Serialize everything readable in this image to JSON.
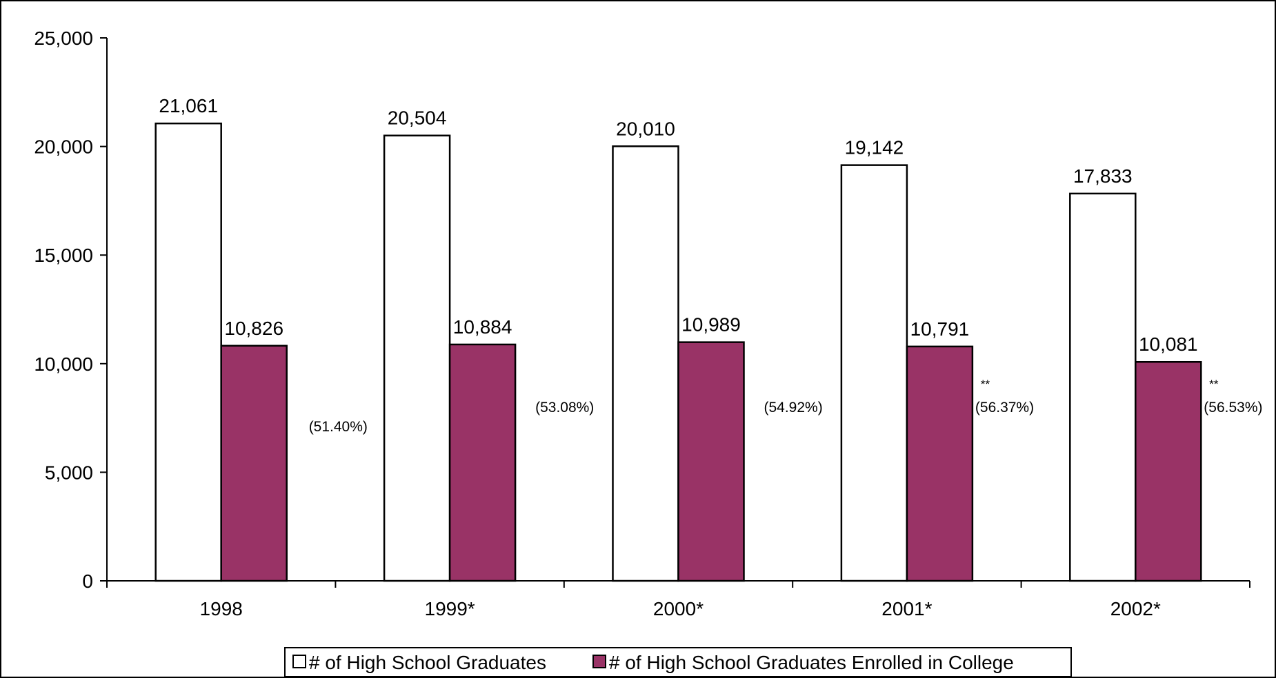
{
  "chart_data": {
    "type": "bar",
    "title": "",
    "xlabel": "",
    "ylabel": "",
    "ylim": [
      0,
      25000
    ],
    "yticks": [
      0,
      5000,
      10000,
      15000,
      20000,
      25000
    ],
    "ytick_labels": [
      "0",
      "5,000",
      "10,000",
      "15,000",
      "20,000",
      "25,000"
    ],
    "categories": [
      "1998",
      "1999*",
      "2000*",
      "2001*",
      "2002*"
    ],
    "series": [
      {
        "name": "# of High School Graduates",
        "color": "#ffffff",
        "values": [
          21061,
          20504,
          20010,
          19142,
          17833
        ],
        "labels": [
          "21,061",
          "20,504",
          "20,010",
          "19,142",
          "17,833"
        ]
      },
      {
        "name": "# of High School Graduates Enrolled in College",
        "color": "#993366",
        "values": [
          10826,
          10884,
          10989,
          10791,
          10081
        ],
        "labels": [
          "10,826",
          "10,884",
          "10,989",
          "10,791",
          "10,081"
        ]
      }
    ],
    "annotations": [
      "(51.40%)",
      "(53.08%)",
      "(54.92%)",
      "(56.37%)",
      "(56.53%)"
    ],
    "annotation_markers": [
      "",
      "",
      "",
      "**",
      "**"
    ],
    "grid": false,
    "legend_position": "bottom"
  }
}
